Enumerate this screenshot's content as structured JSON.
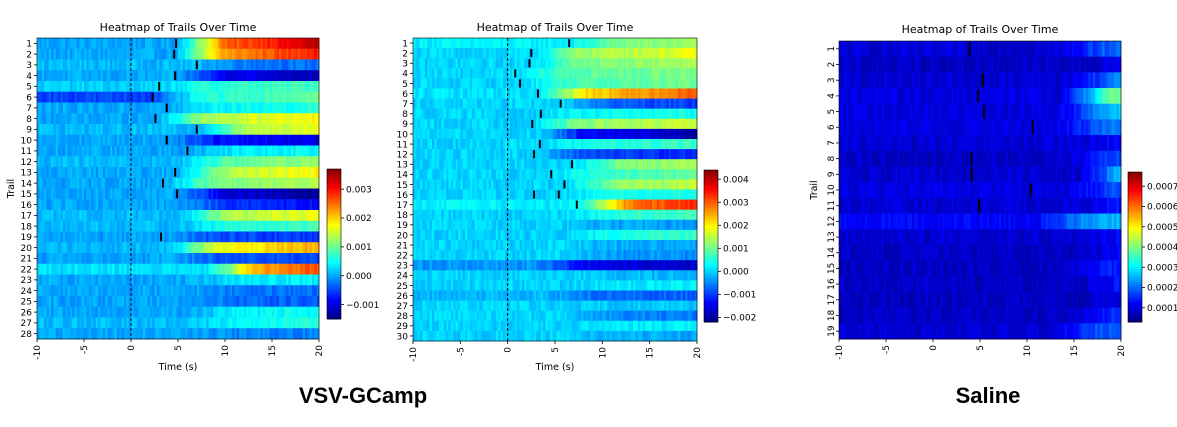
{
  "group_labels": [
    "VSV-GCamp",
    "Saline"
  ],
  "chart_data": [
    {
      "type": "heatmap",
      "title": "Heatmap of Trails Over Time",
      "xlabel": "Time (s)",
      "ylabel": "Trail",
      "xlim": [
        -10,
        20
      ],
      "x_ticks": [
        -10,
        -5,
        0,
        5,
        10,
        15,
        20
      ],
      "x_tick_labels": [
        "-10",
        "-5",
        "0",
        "5",
        "10",
        "15",
        "20"
      ],
      "rows": [
        "1",
        "2",
        "3",
        "4",
        "5",
        "6",
        "7",
        "8",
        "9",
        "10",
        "11",
        "12",
        "13",
        "14",
        "15",
        "16",
        "17",
        "18",
        "19",
        "20",
        "21",
        "22",
        "23",
        "24",
        "25",
        "26",
        "27",
        "28"
      ],
      "colormap": "jet",
      "vlim": [
        -0.0015,
        0.0037
      ],
      "colorbar_ticks": [
        -0.001,
        0,
        0.001,
        0.002,
        0.003
      ],
      "colorbar_tick_labels": [
        "−0.001",
        "0.000",
        "0.001",
        "0.002",
        "0.003"
      ],
      "stimulus_line_x": 0,
      "event_markers": [
        {
          "trial": "1",
          "time": 4.8
        },
        {
          "trial": "2",
          "time": 4.6
        },
        {
          "trial": "3",
          "time": 7.0
        },
        {
          "trial": "4",
          "time": 4.7
        },
        {
          "trial": "5",
          "time": 3.0
        },
        {
          "trial": "6",
          "time": 2.3
        },
        {
          "trial": "7",
          "time": 3.8
        },
        {
          "trial": "8",
          "time": 2.6
        },
        {
          "trial": "9",
          "time": 7.0
        },
        {
          "trial": "10",
          "time": 3.8
        },
        {
          "trial": "11",
          "time": 6.0
        },
        {
          "trial": "13",
          "time": 4.7
        },
        {
          "trial": "14",
          "time": 3.4
        },
        {
          "trial": "15",
          "time": 4.9
        },
        {
          "trial": "19",
          "time": 3.2
        }
      ],
      "row_values": [
        {
          "base": 0.0,
          "late": 0.0034,
          "onset": 4.8
        },
        {
          "base": 0.0,
          "late": 0.003,
          "onset": 4.6
        },
        {
          "base": 0.0001,
          "late": -0.0003,
          "onset": 7.0
        },
        {
          "base": 0.0,
          "late": -0.0012,
          "onset": 4.7
        },
        {
          "base": 0.0002,
          "late": 0.0008,
          "onset": 3.0
        },
        {
          "base": -0.0005,
          "late": 0.001,
          "onset": 2.3
        },
        {
          "base": 0.0,
          "late": 0.0006,
          "onset": 3.8
        },
        {
          "base": 0.0,
          "late": 0.0018,
          "onset": 2.6
        },
        {
          "base": 0.0001,
          "late": 0.0017,
          "onset": 7.0
        },
        {
          "base": 0.0,
          "late": -0.001,
          "onset": 3.8
        },
        {
          "base": 0.0,
          "late": 0.0005,
          "onset": 6.0
        },
        {
          "base": 0.0001,
          "late": 0.0012,
          "onset": 5.0
        },
        {
          "base": 0.0,
          "late": 0.0018,
          "onset": 4.7
        },
        {
          "base": 0.0,
          "late": 0.0014,
          "onset": 3.4
        },
        {
          "base": 0.0,
          "late": -0.0014,
          "onset": 4.9
        },
        {
          "base": 0.0,
          "late": -0.0008,
          "onset": 5.0
        },
        {
          "base": 0.0001,
          "late": 0.0017,
          "onset": 5.0
        },
        {
          "base": 0.0001,
          "late": 0.0008,
          "onset": 5.0
        },
        {
          "base": 0.0,
          "late": -0.0006,
          "onset": 3.2
        },
        {
          "base": 0.0001,
          "late": 0.0022,
          "onset": 4.0
        },
        {
          "base": 0.0,
          "late": -0.0005,
          "onset": 4.0
        },
        {
          "base": 0.0003,
          "late": 0.0027,
          "onset": 8.0
        },
        {
          "base": 0.0,
          "late": 0.0004,
          "onset": 6.0
        },
        {
          "base": 0.0,
          "late": -0.0003,
          "onset": 6.0
        },
        {
          "base": 0.0,
          "late": -0.0004,
          "onset": 6.0
        },
        {
          "base": 0.0,
          "late": 0.0005,
          "onset": 6.0
        },
        {
          "base": 0.0001,
          "late": 0.0006,
          "onset": 6.0
        },
        {
          "base": 0.0,
          "late": -0.0002,
          "onset": 6.0
        }
      ]
    },
    {
      "type": "heatmap",
      "title": "Heatmap of Trails Over Time",
      "xlabel": "Time (s)",
      "ylabel": "",
      "xlim": [
        -10,
        20
      ],
      "x_ticks": [
        -10,
        -5,
        0,
        5,
        10,
        15,
        20
      ],
      "x_tick_labels": [
        "-10",
        "-5",
        "0",
        "5",
        "10",
        "15",
        "20"
      ],
      "rows": [
        "1",
        "2",
        "3",
        "4",
        "5",
        "6",
        "7",
        "8",
        "9",
        "10",
        "11",
        "12",
        "13",
        "14",
        "15",
        "16",
        "17",
        "18",
        "19",
        "20",
        "21",
        "22",
        "23",
        "24",
        "25",
        "26",
        "27",
        "28",
        "29",
        "30"
      ],
      "colormap": "jet",
      "vlim": [
        -0.0022,
        0.0044
      ],
      "colorbar_ticks": [
        -0.002,
        -0.001,
        0,
        0.001,
        0.002,
        0.003,
        0.004
      ],
      "colorbar_tick_labels": [
        "−0.002",
        "−0.001",
        "0.000",
        "0.001",
        "0.002",
        "0.003",
        "0.004"
      ],
      "stimulus_line_x": 0,
      "event_markers": [
        {
          "trial": "1",
          "time": 6.5
        },
        {
          "trial": "2",
          "time": 2.5
        },
        {
          "trial": "3",
          "time": 2.3
        },
        {
          "trial": "4",
          "time": 0.8
        },
        {
          "trial": "5",
          "time": 1.3
        },
        {
          "trial": "6",
          "time": 3.2
        },
        {
          "trial": "7",
          "time": 5.6
        },
        {
          "trial": "8",
          "time": 3.5
        },
        {
          "trial": "9",
          "time": 2.6
        },
        {
          "trial": "11",
          "time": 3.4
        },
        {
          "trial": "12",
          "time": 2.8
        },
        {
          "trial": "13",
          "time": 6.8
        },
        {
          "trial": "14",
          "time": 4.6
        },
        {
          "trial": "15",
          "time": 6.0
        },
        {
          "trial": "16",
          "time": 2.8
        },
        {
          "trial": "16",
          "time": 5.4
        },
        {
          "trial": "17",
          "time": 7.3
        }
      ],
      "row_values": [
        {
          "base": 0.0002,
          "late": 0.0013,
          "onset": 6.5
        },
        {
          "base": 0.0,
          "late": 0.0018,
          "onset": 2.5
        },
        {
          "base": 0.0,
          "late": 0.0014,
          "onset": 2.3
        },
        {
          "base": 0.0,
          "late": 0.0011,
          "onset": 0.8
        },
        {
          "base": 0.0,
          "late": 0.001,
          "onset": 1.3
        },
        {
          "base": 0.0001,
          "late": 0.003,
          "onset": 3.2
        },
        {
          "base": 0.0,
          "late": -0.001,
          "onset": 5.6
        },
        {
          "base": 0.0,
          "late": 0.0004,
          "onset": 3.5
        },
        {
          "base": 0.0,
          "late": 0.0016,
          "onset": 2.6
        },
        {
          "base": 0.0,
          "late": -0.0019,
          "onset": 3.0
        },
        {
          "base": 0.0,
          "late": 0.0006,
          "onset": 3.4
        },
        {
          "base": 0.0,
          "late": -0.0012,
          "onset": 2.8
        },
        {
          "base": 0.0,
          "late": 0.0014,
          "onset": 6.8
        },
        {
          "base": 0.0,
          "late": 0.0009,
          "onset": 4.6
        },
        {
          "base": 0.0,
          "late": 0.0015,
          "onset": 6.0
        },
        {
          "base": 0.0,
          "late": 0.0005,
          "onset": 5.4
        },
        {
          "base": 0.0002,
          "late": 0.0034,
          "onset": 7.3
        },
        {
          "base": 0.0,
          "late": 0.0007,
          "onset": 6.0
        },
        {
          "base": 0.0,
          "late": -0.0004,
          "onset": 6.0
        },
        {
          "base": 0.0,
          "late": 0.0006,
          "onset": 6.0
        },
        {
          "base": 0.0,
          "late": -0.0003,
          "onset": 6.0
        },
        {
          "base": 0.0,
          "late": -0.0005,
          "onset": 6.0
        },
        {
          "base": -0.0004,
          "late": -0.0018,
          "onset": 3.0
        },
        {
          "base": 0.0,
          "late": -0.0002,
          "onset": 6.0
        },
        {
          "base": 0.0,
          "late": 0.0002,
          "onset": 6.0
        },
        {
          "base": -0.0002,
          "late": -0.0008,
          "onset": 4.0
        },
        {
          "base": 0.0,
          "late": -0.0001,
          "onset": 6.0
        },
        {
          "base": 0.0,
          "late": -0.0006,
          "onset": 6.0
        },
        {
          "base": 0.0,
          "late": 0.0002,
          "onset": 6.0
        },
        {
          "base": 0.0,
          "late": -0.0003,
          "onset": 6.0
        }
      ]
    },
    {
      "type": "heatmap",
      "title": "Heatmap of Trails Over Time",
      "xlabel": "",
      "ylabel": "Trail",
      "xlim": [
        -10,
        20
      ],
      "x_ticks": [
        -10,
        -5,
        0,
        5,
        10,
        15,
        20
      ],
      "x_tick_labels": [
        "-10",
        "-5",
        "0",
        "5",
        "10",
        "15",
        "20"
      ],
      "rows": [
        "1",
        "2",
        "3",
        "4",
        "5",
        "6",
        "7",
        "8",
        "9",
        "10",
        "11",
        "12",
        "13",
        "14",
        "15",
        "16",
        "17",
        "18",
        "19"
      ],
      "colormap": "jet",
      "vlim": [
        3e-05,
        0.00077
      ],
      "colorbar_ticks": [
        0.0001,
        0.0002,
        0.0003,
        0.0004,
        0.0005,
        0.0006,
        0.0007
      ],
      "colorbar_tick_labels": [
        "0.0001",
        "0.0002",
        "0.0003",
        "0.0004",
        "0.0005",
        "0.0006",
        "0.0007"
      ],
      "stimulus_line_x": null,
      "event_markers": [
        {
          "trial": "1",
          "time": 3.9
        },
        {
          "trial": "3",
          "time": 5.3
        },
        {
          "trial": "4",
          "time": 4.8
        },
        {
          "trial": "5",
          "time": 5.4
        },
        {
          "trial": "6",
          "time": 10.6
        },
        {
          "trial": "8",
          "time": 4.1
        },
        {
          "trial": "9",
          "time": 4.1
        },
        {
          "trial": "10",
          "time": 10.4
        },
        {
          "trial": "11",
          "time": 4.9
        }
      ],
      "row_values": [
        {
          "base": 9e-05,
          "late": 0.0002,
          "onset": 13.0
        },
        {
          "base": 8e-05,
          "late": 0.00015,
          "onset": 17.0
        },
        {
          "base": 9e-05,
          "late": 0.00022,
          "onset": 14.0
        },
        {
          "base": 0.0001,
          "late": 0.0004,
          "onset": 13.5
        },
        {
          "base": 0.0001,
          "late": 0.00026,
          "onset": 13.0
        },
        {
          "base": 0.0001,
          "late": 0.00022,
          "onset": 13.0
        },
        {
          "base": 9e-05,
          "late": 0.00012,
          "onset": 14.0
        },
        {
          "base": 8e-05,
          "late": 0.00018,
          "onset": 14.0
        },
        {
          "base": 9e-05,
          "late": 0.0003,
          "onset": 15.5
        },
        {
          "base": 0.0001,
          "late": 0.00018,
          "onset": 14.0
        },
        {
          "base": 9e-05,
          "late": 0.00014,
          "onset": 15.0
        },
        {
          "base": 0.00012,
          "late": 0.00026,
          "onset": 11.0
        },
        {
          "base": 9e-05,
          "late": 0.00012,
          "onset": 15.0
        },
        {
          "base": 8e-05,
          "late": 0.00012,
          "onset": 15.0
        },
        {
          "base": 8e-05,
          "late": 0.00015,
          "onset": 14.0
        },
        {
          "base": 8e-05,
          "late": 0.00014,
          "onset": 15.0
        },
        {
          "base": 8e-05,
          "late": 0.00012,
          "onset": 16.0
        },
        {
          "base": 8e-05,
          "late": 0.00016,
          "onset": 14.0
        },
        {
          "base": 9e-05,
          "late": 0.0002,
          "onset": 12.5
        }
      ]
    }
  ]
}
